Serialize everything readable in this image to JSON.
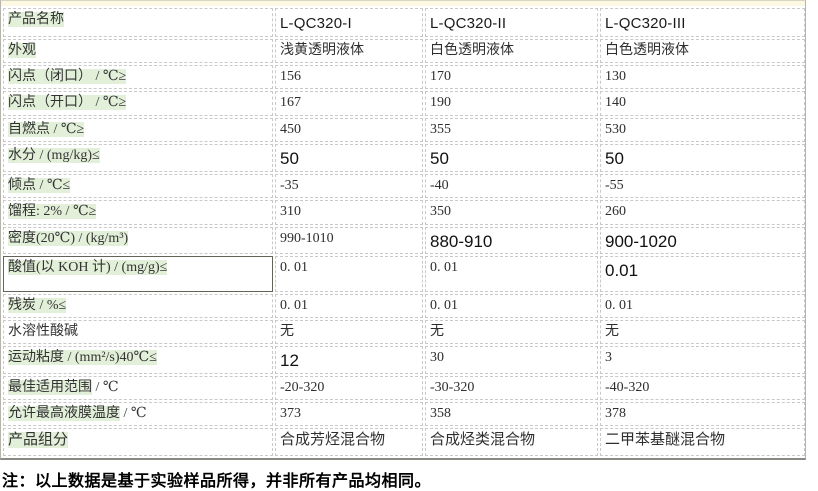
{
  "colors": {
    "highlight_green": "#e2efd9",
    "cream_strip": "#fdf8e2",
    "dashed_border": "#c9c9c9",
    "outer_border": "#b4b4ac",
    "bottom_border": "#8a8a84",
    "text": "#333333"
  },
  "table": {
    "corner": {
      "hl": "产品名称",
      "rest": ""
    },
    "products": [
      "L-QC320-I",
      "L-QC320-II",
      "L-QC320-III"
    ],
    "rows": [
      {
        "label_hl": "外观",
        "label_rest": "",
        "values": [
          "浅黄透明液体",
          "白色透明液体",
          "白色透明液体"
        ],
        "em": [
          0,
          0,
          0
        ]
      },
      {
        "label_hl": "闪点（闭口） / ℃≥",
        "label_rest": "",
        "values": [
          "156",
          "170",
          "130"
        ],
        "em": [
          0,
          0,
          0
        ]
      },
      {
        "label_hl": "闪点（开口） / ℃≥",
        "label_rest": "",
        "values": [
          "167",
          "190",
          "140"
        ],
        "em": [
          0,
          0,
          0
        ]
      },
      {
        "label_hl": "自燃点 / ℃≥",
        "label_rest": "",
        "values": [
          "450",
          "355",
          "530"
        ],
        "em": [
          0,
          0,
          0
        ]
      },
      {
        "label_hl": "水分 / (mg/kg)≤",
        "label_rest": "",
        "values": [
          "50",
          "50",
          "50"
        ],
        "em": [
          1,
          1,
          1
        ]
      },
      {
        "label_hl": "倾点 / ℃≤",
        "label_rest": "",
        "values": [
          "-35",
          "-40",
          "-55"
        ],
        "em": [
          0,
          0,
          0
        ]
      },
      {
        "label_hl": "馏程: 2% / ℃≥",
        "label_rest": "",
        "values": [
          "310",
          "350",
          "260"
        ],
        "em": [
          0,
          0,
          0
        ]
      },
      {
        "label_hl": "密度(20℃) / (kg/m³)",
        "label_rest": "",
        "values": [
          "990-1010",
          "880-910",
          "900-1020"
        ],
        "em": [
          0,
          1,
          1
        ]
      },
      {
        "label_hl": "酸值(以 KOH 计) / (mg/g)≤",
        "label_rest": "",
        "values": [
          "0. 01",
          "0. 01",
          "0.01"
        ],
        "em": [
          0,
          0,
          1
        ]
      },
      {
        "label_hl": "残炭 / %≤",
        "label_rest": "",
        "values": [
          "0. 01",
          "0. 01",
          "0. 01"
        ],
        "em": [
          0,
          0,
          0
        ]
      },
      {
        "label_hl": "",
        "label_rest": "水溶性酸碱",
        "values": [
          "无",
          "无",
          "无"
        ],
        "em": [
          0,
          0,
          0
        ]
      },
      {
        "label_hl": "运动粘度 / (mm²/s)40℃≤",
        "label_rest": "",
        "values": [
          "12",
          "30",
          "3"
        ],
        "em": [
          1,
          0,
          0
        ]
      },
      {
        "label_hl": "最佳适用范围",
        "label_rest": " / ℃",
        "values": [
          "-20-320",
          "-30-320",
          "-40-320"
        ],
        "em": [
          0,
          0,
          0
        ]
      },
      {
        "label_hl": "允许最高液膜温度",
        "label_rest": " / ℃",
        "values": [
          "373",
          "358",
          "378"
        ],
        "em": [
          0,
          0,
          0
        ]
      },
      {
        "label_hl": "产品组分",
        "label_rest": "",
        "values": [
          "合成芳烃混合物",
          "合成烃类混合物",
          "二甲苯基醚混合物"
        ],
        "em": [
          0,
          0,
          0
        ]
      }
    ]
  },
  "note": "注：以上数据是基于实验样品所得，并非所有产品均相同。"
}
